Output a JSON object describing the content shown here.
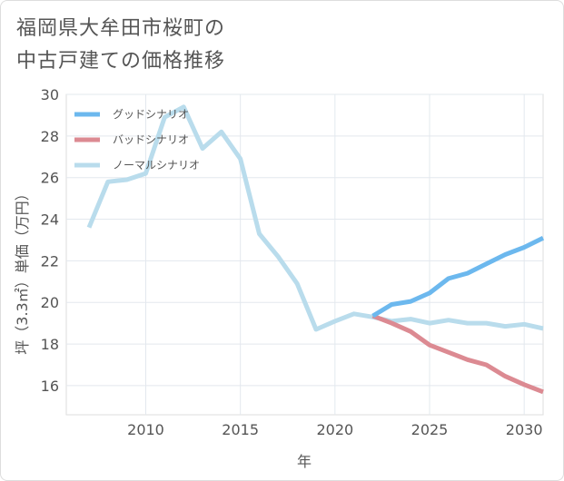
{
  "title": {
    "line1": "福岡県大牟田市桜町の",
    "line2": "中古戸建ての価格推移"
  },
  "chart_data": {
    "type": "line",
    "xlabel": "年",
    "ylabel": "坪（3.3㎡）単価（万円）",
    "xlim": [
      2005.8,
      2031
    ],
    "ylim": [
      14.6,
      30
    ],
    "x_ticks": [
      2010,
      2015,
      2020,
      2025,
      2030
    ],
    "y_ticks": [
      16,
      18,
      20,
      22,
      24,
      26,
      28,
      30
    ],
    "legend_position": "top-left",
    "series": [
      {
        "name": "グッドシナリオ",
        "color": "#6cb8ee",
        "x": [
          2022,
          2023,
          2024,
          2025,
          2026,
          2027,
          2028,
          2029,
          2030,
          2031
        ],
        "values": [
          19.35,
          19.9,
          20.05,
          20.45,
          21.15,
          21.4,
          21.85,
          22.3,
          22.65,
          23.1
        ]
      },
      {
        "name": "バッドシナリオ",
        "color": "#dc8a92",
        "x": [
          2022,
          2023,
          2024,
          2025,
          2026,
          2027,
          2028,
          2029,
          2030,
          2031
        ],
        "values": [
          19.35,
          19.0,
          18.6,
          17.95,
          17.6,
          17.25,
          17.0,
          16.45,
          16.05,
          15.7
        ]
      },
      {
        "name": "ノーマルシナリオ",
        "color": "#b9dcec",
        "x": [
          2007,
          2008,
          2009,
          2010,
          2011,
          2012,
          2013,
          2014,
          2015,
          2016,
          2017,
          2018,
          2019,
          2020,
          2021,
          2022,
          2023,
          2024,
          2025,
          2026,
          2027,
          2028,
          2029,
          2030,
          2031
        ],
        "values": [
          23.6,
          25.8,
          25.9,
          26.2,
          28.9,
          29.4,
          27.4,
          28.2,
          26.9,
          23.3,
          22.2,
          20.9,
          18.7,
          19.1,
          19.45,
          19.3,
          19.1,
          19.2,
          19.0,
          19.15,
          19.0,
          19.0,
          18.85,
          18.95,
          18.75
        ]
      }
    ]
  }
}
